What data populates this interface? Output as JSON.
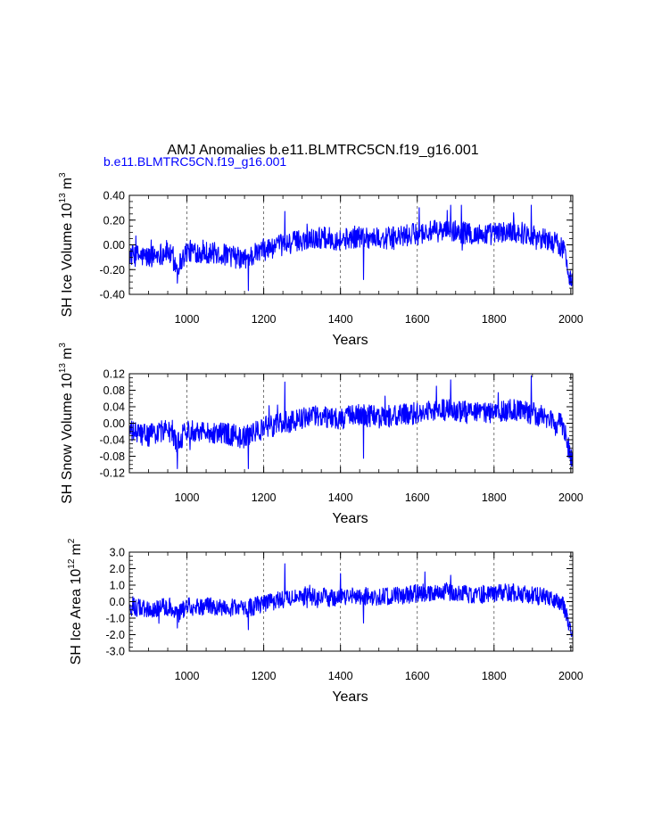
{
  "title": "AMJ Anomalies b.e11.BLMTRC5CN.f19_g16.001",
  "subtitle": "b.e11.BLMTRC5CN.f19_g16.001",
  "colors": {
    "series": "#0000ff",
    "subtitle": "#0000ff",
    "axes": "#000000",
    "grid": "#555555"
  },
  "chart_data": [
    {
      "type": "line",
      "name": "sh-ice-volume",
      "ylabel_main": "SH Ice Volume 10",
      "ylabel_exp": "13",
      "ylabel_unit": "m",
      "ylabel_unit_exp": "3",
      "xlabel": "Years",
      "xlim": [
        850,
        2005
      ],
      "ylim": [
        -0.4,
        0.4
      ],
      "yticks": [
        "0.40",
        "0.20",
        "0.00",
        "-0.20",
        "-0.40"
      ],
      "ytick_values": [
        0.4,
        0.2,
        0.0,
        -0.2,
        -0.4
      ],
      "xticks": [
        "1000",
        "1200",
        "1400",
        "1600",
        "1800",
        "2000"
      ],
      "xtick_values": [
        1000,
        1200,
        1400,
        1600,
        1800,
        2000
      ],
      "grid_x": [
        1000,
        1200,
        1400,
        1600,
        1800
      ],
      "anchors": [
        [
          850,
          -0.08
        ],
        [
          900,
          -0.1
        ],
        [
          950,
          -0.05
        ],
        [
          975,
          -0.18
        ],
        [
          1000,
          -0.05
        ],
        [
          1050,
          -0.06
        ],
        [
          1100,
          -0.08
        ],
        [
          1150,
          -0.12
        ],
        [
          1200,
          -0.04
        ],
        [
          1250,
          0.0
        ],
        [
          1300,
          0.04
        ],
        [
          1350,
          0.06
        ],
        [
          1400,
          0.04
        ],
        [
          1450,
          0.07
        ],
        [
          1500,
          0.05
        ],
        [
          1550,
          0.06
        ],
        [
          1600,
          0.09
        ],
        [
          1650,
          0.11
        ],
        [
          1700,
          0.11
        ],
        [
          1750,
          0.08
        ],
        [
          1800,
          0.09
        ],
        [
          1850,
          0.11
        ],
        [
          1900,
          0.08
        ],
        [
          1950,
          0.03
        ],
        [
          1980,
          -0.02
        ],
        [
          1990,
          -0.16
        ],
        [
          2000,
          -0.27
        ],
        [
          2005,
          -0.3
        ]
      ],
      "noise": 0.09,
      "clip": [
        -0.38,
        0.33
      ],
      "spikes": [
        [
          975,
          -0.31
        ],
        [
          1160,
          -0.37
        ],
        [
          1255,
          0.27
        ],
        [
          1460,
          -0.28
        ],
        [
          1687,
          0.32
        ],
        [
          1715,
          0.32
        ],
        [
          1897,
          0.32
        ],
        [
          1605,
          0.3
        ]
      ]
    },
    {
      "type": "line",
      "name": "sh-snow-volume",
      "ylabel_main": "SH Snow Volume 10",
      "ylabel_exp": "13",
      "ylabel_unit": "m",
      "ylabel_unit_exp": "3",
      "xlabel": "Years",
      "xlim": [
        850,
        2005
      ],
      "ylim": [
        -0.12,
        0.12
      ],
      "yticks": [
        "0.12",
        "0.08",
        "0.04",
        "0.00",
        "-0.04",
        "-0.08",
        "-0.12"
      ],
      "ytick_values": [
        0.12,
        0.08,
        0.04,
        0.0,
        -0.04,
        -0.08,
        -0.12
      ],
      "xticks": [
        "1000",
        "1200",
        "1400",
        "1600",
        "1800",
        "2000"
      ],
      "xtick_values": [
        1000,
        1200,
        1400,
        1600,
        1800,
        2000
      ],
      "grid_x": [
        1000,
        1200,
        1400,
        1600,
        1800
      ],
      "anchors": [
        [
          850,
          -0.02
        ],
        [
          900,
          -0.03
        ],
        [
          950,
          -0.015
        ],
        [
          975,
          -0.05
        ],
        [
          1000,
          -0.015
        ],
        [
          1050,
          -0.02
        ],
        [
          1100,
          -0.025
        ],
        [
          1150,
          -0.035
        ],
        [
          1200,
          -0.01
        ],
        [
          1250,
          0.0
        ],
        [
          1300,
          0.012
        ],
        [
          1350,
          0.018
        ],
        [
          1400,
          0.012
        ],
        [
          1450,
          0.02
        ],
        [
          1500,
          0.015
        ],
        [
          1550,
          0.018
        ],
        [
          1600,
          0.025
        ],
        [
          1650,
          0.032
        ],
        [
          1700,
          0.032
        ],
        [
          1750,
          0.022
        ],
        [
          1800,
          0.028
        ],
        [
          1850,
          0.032
        ],
        [
          1900,
          0.024
        ],
        [
          1950,
          0.008
        ],
        [
          1980,
          -0.006
        ],
        [
          1990,
          -0.05
        ],
        [
          2000,
          -0.075
        ],
        [
          2005,
          -0.085
        ]
      ],
      "noise": 0.027,
      "clip": [
        -0.115,
        0.115
      ],
      "spikes": [
        [
          975,
          -0.11
        ],
        [
          1160,
          -0.11
        ],
        [
          1255,
          0.1
        ],
        [
          1460,
          -0.085
        ],
        [
          1687,
          0.105
        ],
        [
          1897,
          0.115
        ],
        [
          1650,
          0.09
        ]
      ]
    },
    {
      "type": "line",
      "name": "sh-ice-area",
      "ylabel_main": "SH Ice Area 10",
      "ylabel_exp": "12",
      "ylabel_unit": "m",
      "ylabel_unit_exp": "2",
      "xlabel": "Years",
      "xlim": [
        850,
        2005
      ],
      "ylim": [
        -3.0,
        3.0
      ],
      "yticks": [
        "3.0",
        "2.0",
        "1.0",
        "0.0",
        "-1.0",
        "-2.0",
        "-3.0"
      ],
      "ytick_values": [
        3.0,
        2.0,
        1.0,
        0.0,
        -1.0,
        -2.0,
        -3.0
      ],
      "xticks": [
        "1000",
        "1200",
        "1400",
        "1600",
        "1800",
        "2000"
      ],
      "xtick_values": [
        1000,
        1200,
        1400,
        1600,
        1800,
        2000
      ],
      "grid_x": [
        1000,
        1200,
        1400,
        1600,
        1800
      ],
      "anchors": [
        [
          850,
          -0.3
        ],
        [
          900,
          -0.45
        ],
        [
          950,
          -0.3
        ],
        [
          975,
          -0.8
        ],
        [
          1000,
          -0.3
        ],
        [
          1050,
          -0.3
        ],
        [
          1100,
          -0.35
        ],
        [
          1150,
          -0.45
        ],
        [
          1200,
          -0.1
        ],
        [
          1250,
          0.15
        ],
        [
          1300,
          0.25
        ],
        [
          1350,
          0.3
        ],
        [
          1400,
          0.25
        ],
        [
          1450,
          0.35
        ],
        [
          1500,
          0.25
        ],
        [
          1550,
          0.35
        ],
        [
          1600,
          0.5
        ],
        [
          1650,
          0.6
        ],
        [
          1700,
          0.6
        ],
        [
          1750,
          0.4
        ],
        [
          1800,
          0.5
        ],
        [
          1850,
          0.55
        ],
        [
          1900,
          0.4
        ],
        [
          1950,
          0.2
        ],
        [
          1980,
          -0.2
        ],
        [
          1990,
          -1.0
        ],
        [
          2000,
          -1.7
        ],
        [
          2005,
          -1.9
        ]
      ],
      "noise": 0.55,
      "clip": [
        -2.1,
        2.3
      ],
      "spikes": [
        [
          1255,
          2.3
        ],
        [
          1160,
          -1.7
        ],
        [
          975,
          -1.6
        ],
        [
          1620,
          1.8
        ],
        [
          1687,
          1.6
        ],
        [
          1400,
          1.7
        ],
        [
          1460,
          -1.3
        ]
      ]
    }
  ]
}
